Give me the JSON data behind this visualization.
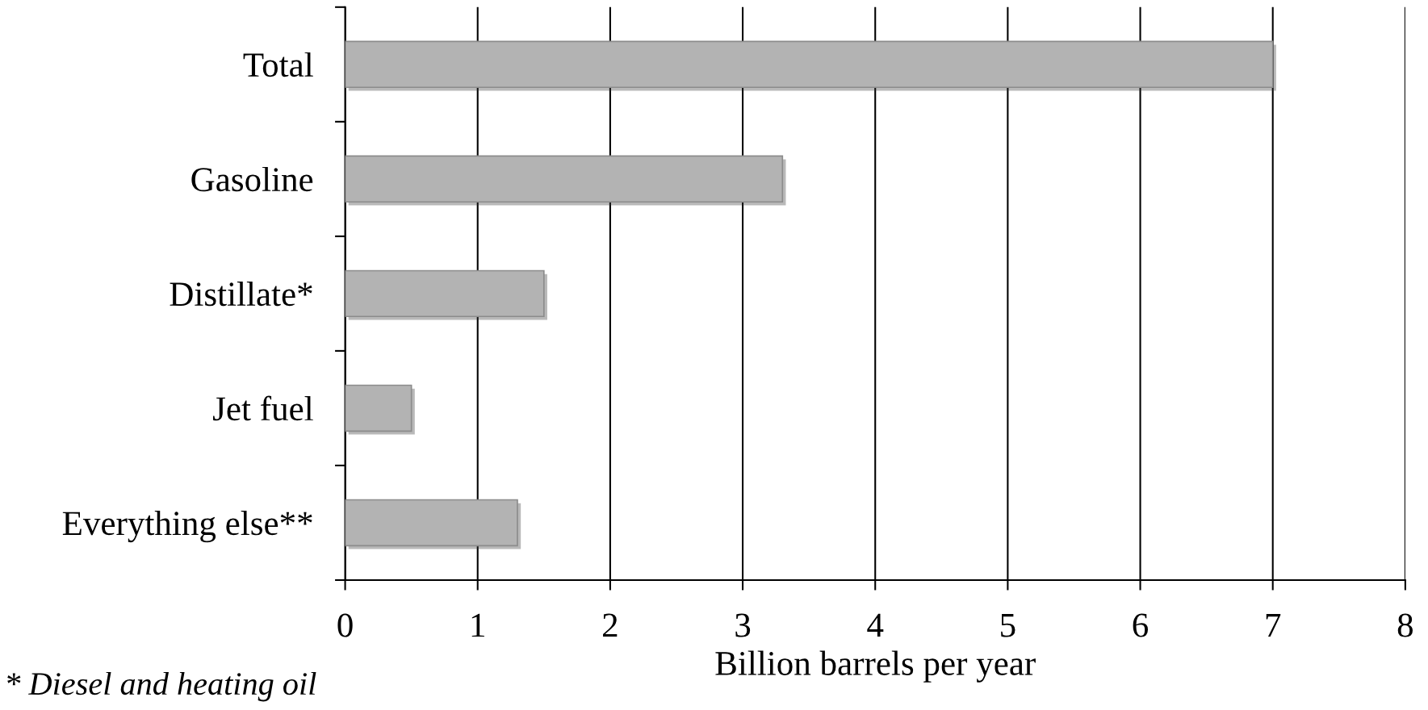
{
  "chart_data": {
    "type": "bar",
    "orientation": "horizontal",
    "categories": [
      "Total",
      "Gasoline",
      "Distillate*",
      "Jet fuel",
      "Everything else**"
    ],
    "values": [
      7,
      3.3,
      1.5,
      0.5,
      1.3
    ],
    "color": "#b3b3b3",
    "xlabel": "Billion barrels per year",
    "xlim": [
      0,
      8
    ],
    "xticks": [
      0,
      1,
      2,
      3,
      4,
      5,
      6,
      7,
      8
    ],
    "grid": "x",
    "annotations": [
      "* Diesel and heating oil"
    ]
  }
}
